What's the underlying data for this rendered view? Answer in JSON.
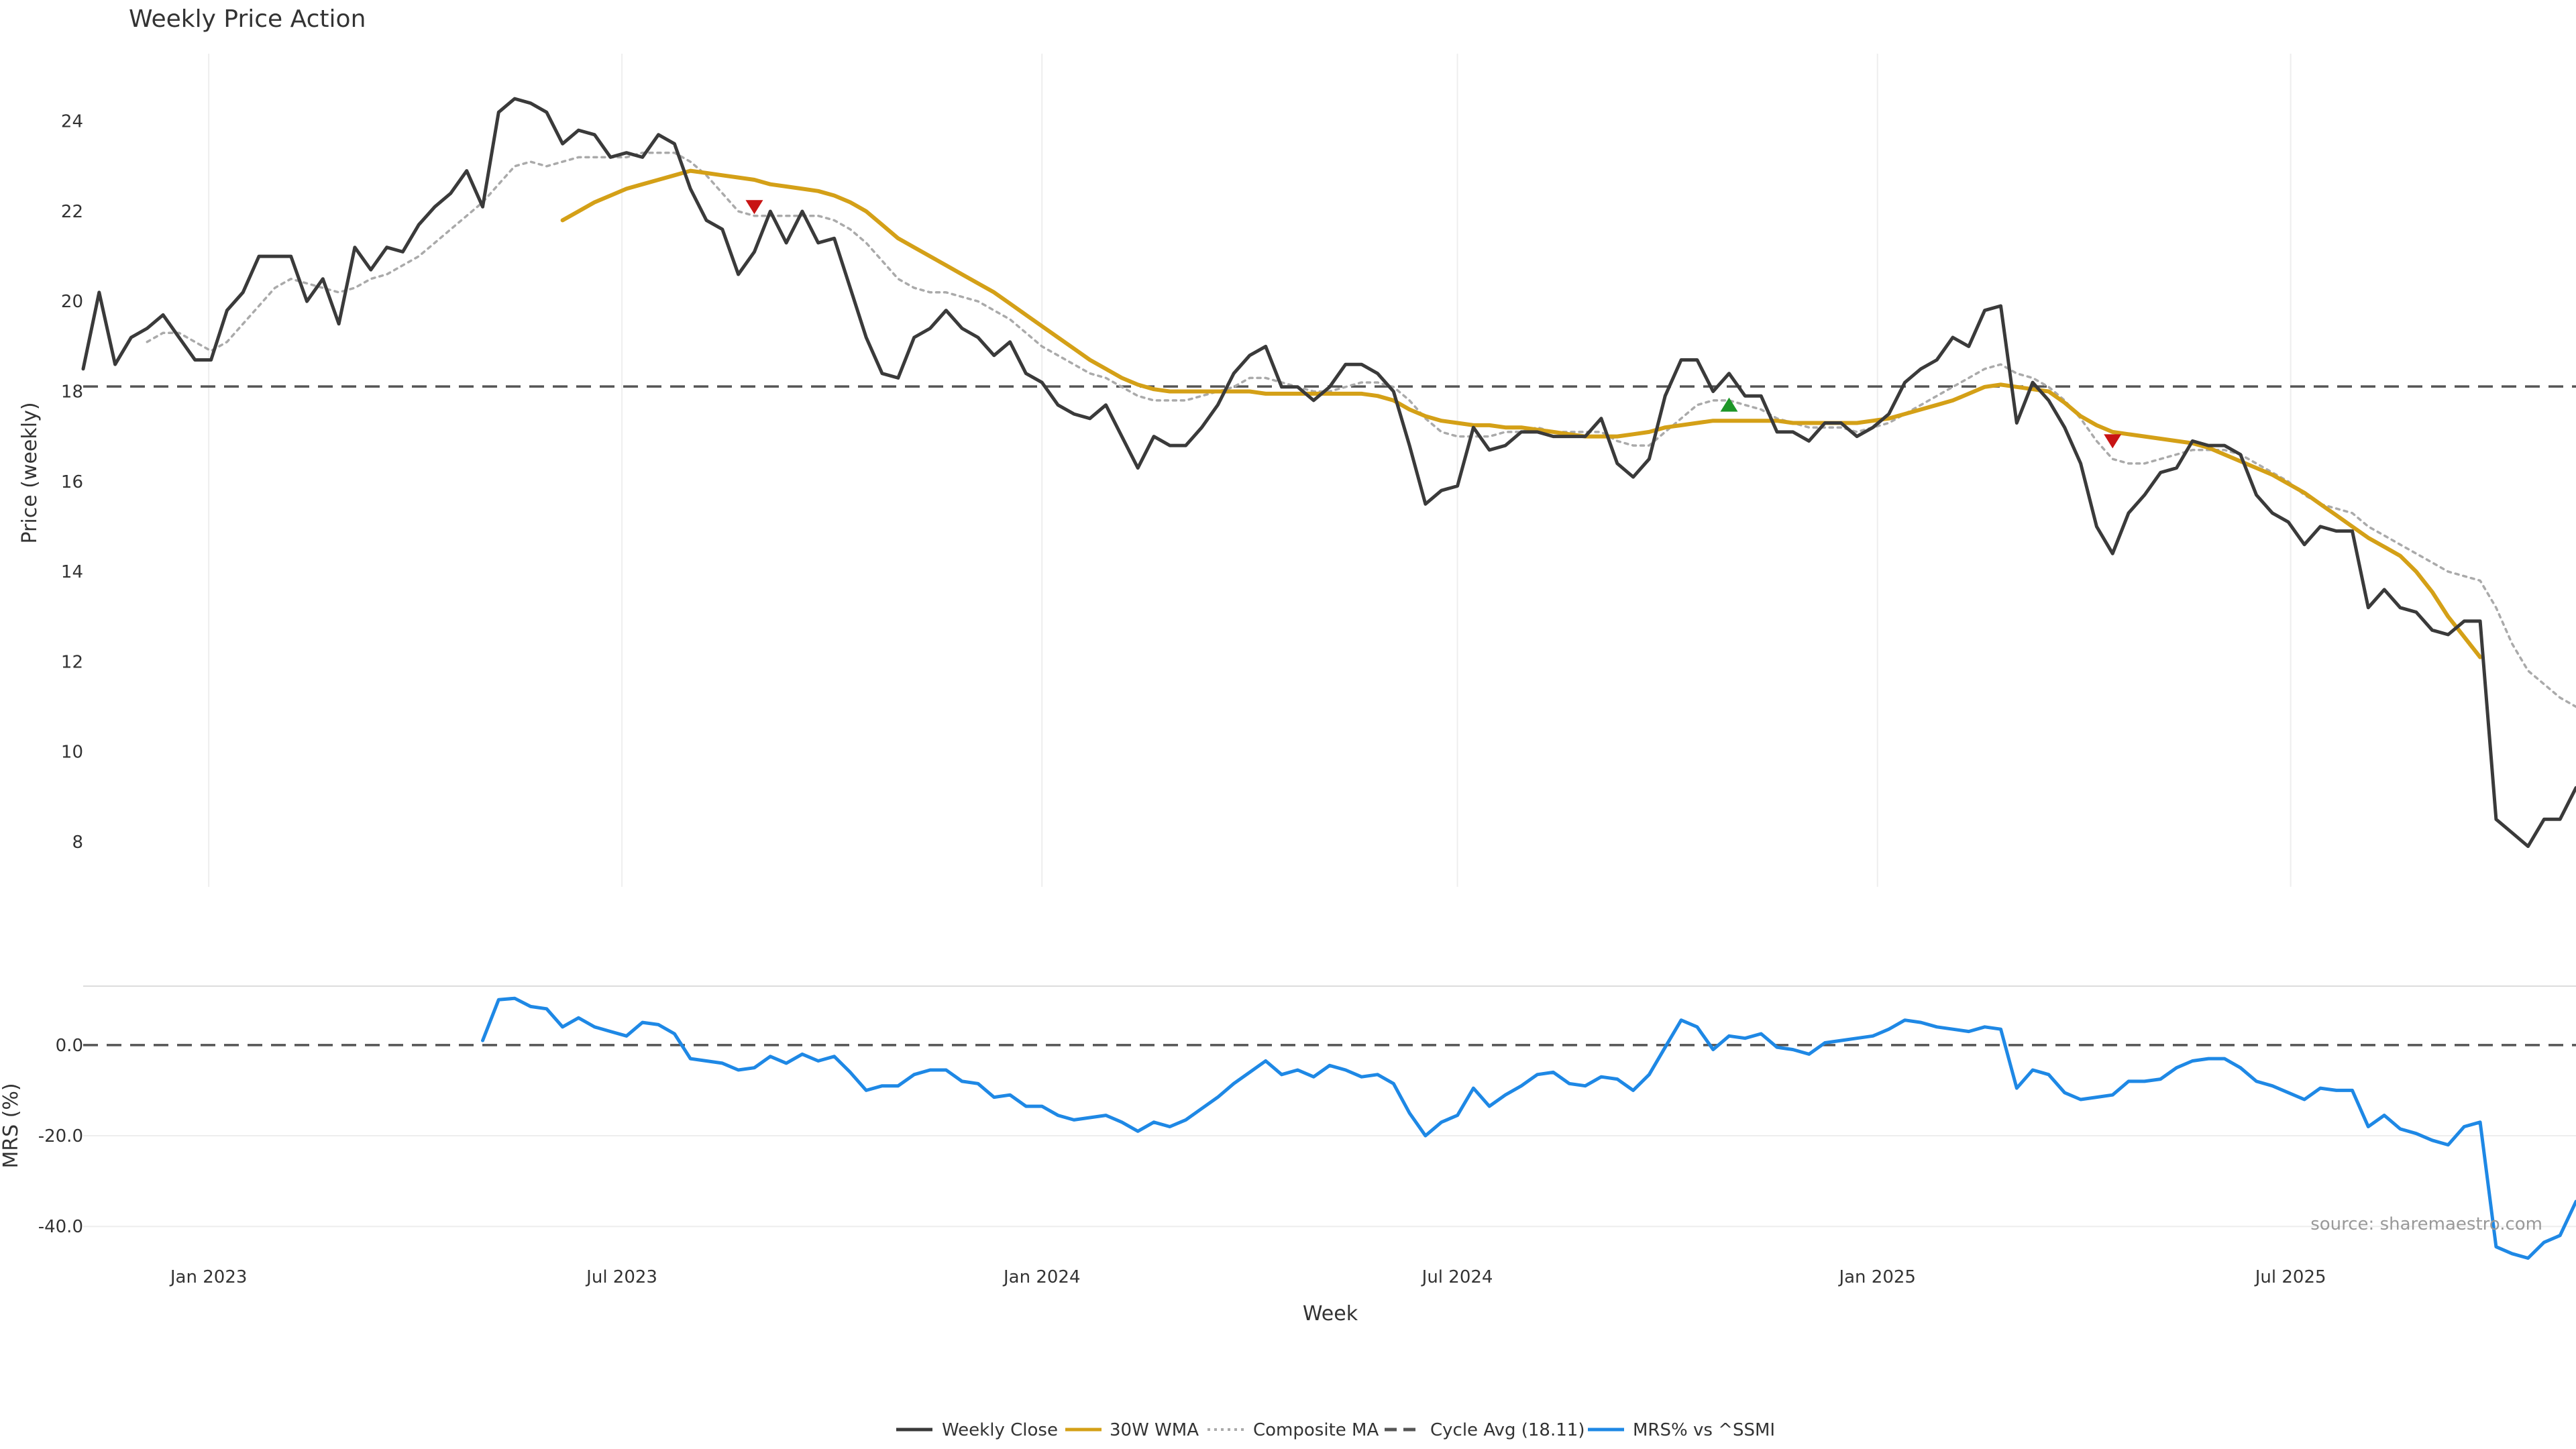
{
  "chart_data": {
    "type": "line",
    "title": "Weekly Price Action",
    "source": "source: sharemaestro.com",
    "xlabel": "Week",
    "x_ticks": [
      "Jan 2023",
      "Jul 2023",
      "Jan 2024",
      "Jul 2024",
      "Jan 2025",
      "Jul 2025"
    ],
    "x_range": [
      "2022-11-07",
      "2025-11-03"
    ],
    "grid": true,
    "legend_position": "bottom-center",
    "price_panel": {
      "ylabel": "Price (weekly)",
      "ylim": [
        7,
        25.5
      ],
      "y_ticks": [
        8,
        10,
        12,
        14,
        16,
        18,
        20,
        22,
        24
      ],
      "cycle_avg": 18.11,
      "series": [
        {
          "name": "Weekly Close",
          "color": "#3a3a3a",
          "style": "solid",
          "values": [
            18.5,
            20.2,
            18.6,
            19.2,
            19.4,
            19.7,
            19.2,
            18.7,
            18.7,
            19.8,
            20.2,
            21.0,
            21.0,
            21.0,
            20.0,
            20.5,
            19.5,
            21.2,
            20.7,
            21.2,
            21.1,
            21.7,
            22.1,
            22.4,
            22.9,
            22.1,
            24.2,
            24.5,
            24.4,
            24.2,
            23.5,
            23.8,
            23.7,
            23.2,
            23.3,
            23.2,
            23.7,
            23.5,
            22.5,
            21.8,
            21.6,
            20.6,
            21.1,
            22.0,
            21.3,
            22.0,
            21.3,
            21.4,
            20.3,
            19.2,
            18.4,
            18.3,
            19.2,
            19.4,
            19.8,
            19.4,
            19.2,
            18.8,
            19.1,
            18.4,
            18.2,
            17.7,
            17.5,
            17.4,
            17.7,
            17.0,
            16.3,
            17.0,
            16.8,
            16.8,
            17.2,
            17.7,
            18.4,
            18.8,
            19.0,
            18.1,
            18.1,
            17.8,
            18.1,
            18.6,
            18.6,
            18.4,
            18.0,
            16.8,
            15.5,
            15.8,
            15.9,
            17.2,
            16.7,
            16.8,
            17.1,
            17.1,
            17.0,
            17.0,
            17.0,
            17.4,
            16.4,
            16.1,
            16.5,
            17.9,
            18.7,
            18.7,
            18.0,
            18.4,
            17.9,
            17.9,
            17.1,
            17.1,
            16.9,
            17.3,
            17.3,
            17.0,
            17.2,
            17.5,
            18.2,
            18.5,
            18.7,
            19.2,
            19.0,
            19.8,
            19.9,
            17.3,
            18.2,
            17.8,
            17.2,
            16.4,
            15.0,
            14.4,
            15.3,
            15.7,
            16.2,
            16.3,
            16.9,
            16.8,
            16.8,
            16.6,
            15.7,
            15.3,
            15.1,
            14.6,
            15.0,
            14.9,
            14.9,
            13.2,
            13.6,
            13.2,
            13.1,
            12.7,
            12.6,
            12.9,
            12.9,
            8.5,
            8.2,
            7.9,
            8.5,
            8.5,
            9.2
          ]
        },
        {
          "name": "30W WMA",
          "color": "#d4a017",
          "style": "solid",
          "values": [
            null,
            null,
            null,
            null,
            null,
            null,
            null,
            null,
            null,
            null,
            null,
            null,
            null,
            null,
            null,
            null,
            null,
            null,
            null,
            null,
            null,
            null,
            null,
            null,
            null,
            null,
            null,
            null,
            null,
            null,
            21.8,
            22.0,
            22.2,
            22.35,
            22.5,
            22.6,
            22.7,
            22.8,
            22.9,
            22.85,
            22.8,
            22.75,
            22.7,
            22.6,
            22.55,
            22.5,
            22.45,
            22.35,
            22.2,
            22.0,
            21.7,
            21.4,
            21.2,
            21.0,
            20.8,
            20.6,
            20.4,
            20.2,
            19.95,
            19.7,
            19.45,
            19.2,
            18.95,
            18.7,
            18.5,
            18.3,
            18.15,
            18.05,
            18.0,
            18.0,
            18.0,
            18.0,
            18.0,
            18.0,
            17.95,
            17.95,
            17.95,
            17.95,
            17.95,
            17.95,
            17.95,
            17.9,
            17.8,
            17.6,
            17.45,
            17.35,
            17.3,
            17.25,
            17.25,
            17.2,
            17.2,
            17.15,
            17.1,
            17.05,
            17.0,
            17.0,
            17.0,
            17.05,
            17.1,
            17.2,
            17.25,
            17.3,
            17.35,
            17.35,
            17.35,
            17.35,
            17.35,
            17.3,
            17.3,
            17.3,
            17.3,
            17.3,
            17.35,
            17.4,
            17.5,
            17.6,
            17.7,
            17.8,
            17.95,
            18.1,
            18.15,
            18.1,
            18.05,
            18.0,
            17.75,
            17.45,
            17.25,
            17.1,
            17.05,
            17.0,
            16.95,
            16.9,
            16.85,
            16.75,
            16.6,
            16.45,
            16.3,
            16.15,
            15.95,
            15.75,
            15.5,
            15.25,
            15.0,
            14.75,
            14.55,
            14.35,
            14.0,
            13.55,
            13.0,
            12.55,
            12.1
          ]
        },
        {
          "name": "Composite MA",
          "color": "#aaaaaa",
          "style": "dotted",
          "values": [
            null,
            null,
            null,
            null,
            19.1,
            19.3,
            19.3,
            19.1,
            18.9,
            19.1,
            19.5,
            19.9,
            20.3,
            20.5,
            20.4,
            20.3,
            20.2,
            20.3,
            20.5,
            20.6,
            20.8,
            21.0,
            21.3,
            21.6,
            21.9,
            22.2,
            22.6,
            23.0,
            23.1,
            23.0,
            23.1,
            23.2,
            23.2,
            23.2,
            23.2,
            23.3,
            23.3,
            23.3,
            23.1,
            22.8,
            22.4,
            22.0,
            21.9,
            21.9,
            21.9,
            21.9,
            21.9,
            21.8,
            21.6,
            21.3,
            20.9,
            20.5,
            20.3,
            20.2,
            20.2,
            20.1,
            20.0,
            19.8,
            19.6,
            19.3,
            19.0,
            18.8,
            18.6,
            18.4,
            18.3,
            18.1,
            17.9,
            17.8,
            17.8,
            17.8,
            17.9,
            18.0,
            18.1,
            18.3,
            18.3,
            18.2,
            18.1,
            18.0,
            18.0,
            18.1,
            18.2,
            18.2,
            18.1,
            17.8,
            17.4,
            17.1,
            17.0,
            17.0,
            17.0,
            17.1,
            17.1,
            17.2,
            17.1,
            17.1,
            17.1,
            17.1,
            16.9,
            16.8,
            16.8,
            17.1,
            17.4,
            17.7,
            17.8,
            17.8,
            17.7,
            17.6,
            17.4,
            17.3,
            17.2,
            17.2,
            17.2,
            17.1,
            17.2,
            17.3,
            17.5,
            17.7,
            17.9,
            18.1,
            18.3,
            18.5,
            18.6,
            18.4,
            18.3,
            18.1,
            17.8,
            17.4,
            16.9,
            16.5,
            16.4,
            16.4,
            16.5,
            16.6,
            16.7,
            16.7,
            16.7,
            16.6,
            16.4,
            16.2,
            16.0,
            15.7,
            15.5,
            15.4,
            15.3,
            15.0,
            14.8,
            14.6,
            14.4,
            14.2,
            14.0,
            13.9,
            13.8,
            13.2,
            12.4,
            11.8,
            11.5,
            11.2,
            11.0
          ]
        }
      ],
      "signals": [
        {
          "type": "sell",
          "week_index": 42,
          "price": 22.1,
          "color": "#c81414"
        },
        {
          "type": "buy",
          "week_index": 103,
          "price": 17.7,
          "color": "#1e9628"
        },
        {
          "type": "sell",
          "week_index": 127,
          "price": 16.9,
          "color": "#c81414"
        }
      ]
    },
    "mrs_panel": {
      "ylabel": "MRS (%)",
      "ylim": [
        -45,
        13
      ],
      "y_ticks": [
        "0.0",
        "-20.0",
        "-40.0"
      ],
      "series": [
        {
          "name": "MRS% vs ^SSMI",
          "color": "#1e88e5",
          "style": "solid",
          "values": [
            null,
            null,
            null,
            null,
            null,
            null,
            null,
            null,
            null,
            null,
            null,
            null,
            null,
            null,
            null,
            null,
            null,
            null,
            null,
            null,
            null,
            null,
            null,
            null,
            null,
            1.0,
            10.0,
            10.3,
            8.5,
            8.0,
            4.0,
            6.0,
            4.0,
            3.0,
            2.0,
            5.0,
            4.5,
            2.5,
            -3.0,
            -3.5,
            -4.0,
            -5.5,
            -5.0,
            -2.5,
            -4.0,
            -2.0,
            -3.5,
            -2.5,
            -6.0,
            -10.0,
            -9.0,
            -9.0,
            -6.5,
            -5.5,
            -5.5,
            -8.0,
            -8.5,
            -11.5,
            -11.0,
            -13.5,
            -13.5,
            -15.5,
            -16.5,
            -16.0,
            -15.5,
            -17.0,
            -19.0,
            -17.0,
            -18.0,
            -16.5,
            -14.0,
            -11.5,
            -8.5,
            -6.0,
            -3.5,
            -6.5,
            -5.5,
            -7.0,
            -4.5,
            -5.5,
            -7.0,
            -6.5,
            -8.5,
            -15.0,
            -20.0,
            -17.0,
            -15.5,
            -9.5,
            -13.5,
            -11.0,
            -9.0,
            -6.5,
            -6.0,
            -8.5,
            -9.0,
            -7.0,
            -7.5,
            -10.0,
            -6.5,
            -0.5,
            5.5,
            4.0,
            -1.0,
            2.0,
            1.5,
            2.5,
            -0.5,
            -1.0,
            -2.0,
            0.5,
            1.0,
            1.5,
            2.0,
            3.5,
            5.5,
            5.0,
            4.0,
            3.5,
            3.0,
            4.0,
            3.5,
            -9.5,
            -5.5,
            -6.5,
            -10.5,
            -12.0,
            -11.5,
            -11.0,
            -8.0,
            -8.0,
            -7.5,
            -5.0,
            -3.5,
            -3.0,
            -3.0,
            -5.0,
            -8.0,
            -9.0,
            -10.5,
            -12.0,
            -9.5,
            -10.0,
            -10.0,
            -18.0,
            -15.5,
            -18.5,
            -19.5,
            -21.0,
            -22.0,
            -18.0,
            -17.0,
            -44.5,
            -46.0,
            -47.0,
            -43.5,
            -42.0,
            -34.5
          ]
        }
      ]
    },
    "legend": [
      {
        "label": "Weekly Close",
        "color": "#3a3a3a",
        "style": "solid"
      },
      {
        "label": "30W WMA",
        "color": "#d4a017",
        "style": "solid"
      },
      {
        "label": "Composite MA",
        "color": "#aaaaaa",
        "style": "dotted"
      },
      {
        "label": "Cycle Avg (18.11)",
        "color": "#555555",
        "style": "dashed"
      },
      {
        "label": "MRS% vs ^SSMI",
        "color": "#1e88e5",
        "style": "solid"
      }
    ]
  }
}
